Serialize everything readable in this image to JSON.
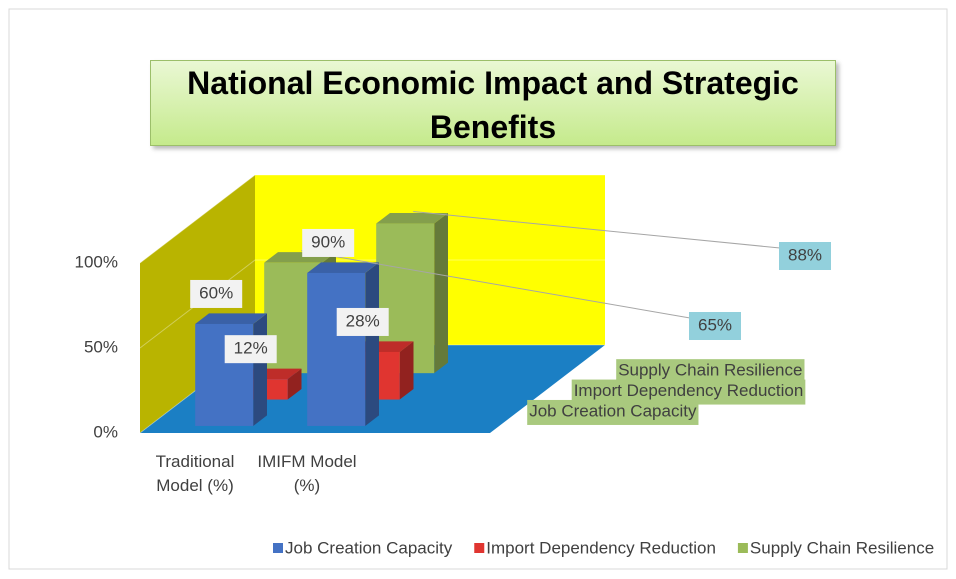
{
  "chart_data": {
    "type": "bar3d",
    "title": "National Economic Impact and Strategic Benefits",
    "categories": [
      "Traditional Model (%)",
      "IMIFM Model (%)"
    ],
    "series": [
      {
        "name": "Job Creation Capacity",
        "color": "#4472c4",
        "values": [
          60,
          90
        ],
        "value_labels": [
          "60%",
          "90%"
        ]
      },
      {
        "name": "Import Dependency Reduction",
        "color": "#e03530",
        "values": [
          12,
          28
        ],
        "value_labels": [
          "12%",
          "28%"
        ]
      },
      {
        "name": "Supply Chain Resilience",
        "color": "#9bbb59",
        "values": [
          65,
          88
        ],
        "value_labels": [
          "65%",
          "88%"
        ]
      }
    ],
    "ylim": [
      0,
      100
    ],
    "yticks": [
      {
        "value": 0,
        "label": "0%"
      },
      {
        "value": 50,
        "label": "50%"
      },
      {
        "value": 100,
        "label": "100%"
      }
    ],
    "legend": "bottom"
  }
}
